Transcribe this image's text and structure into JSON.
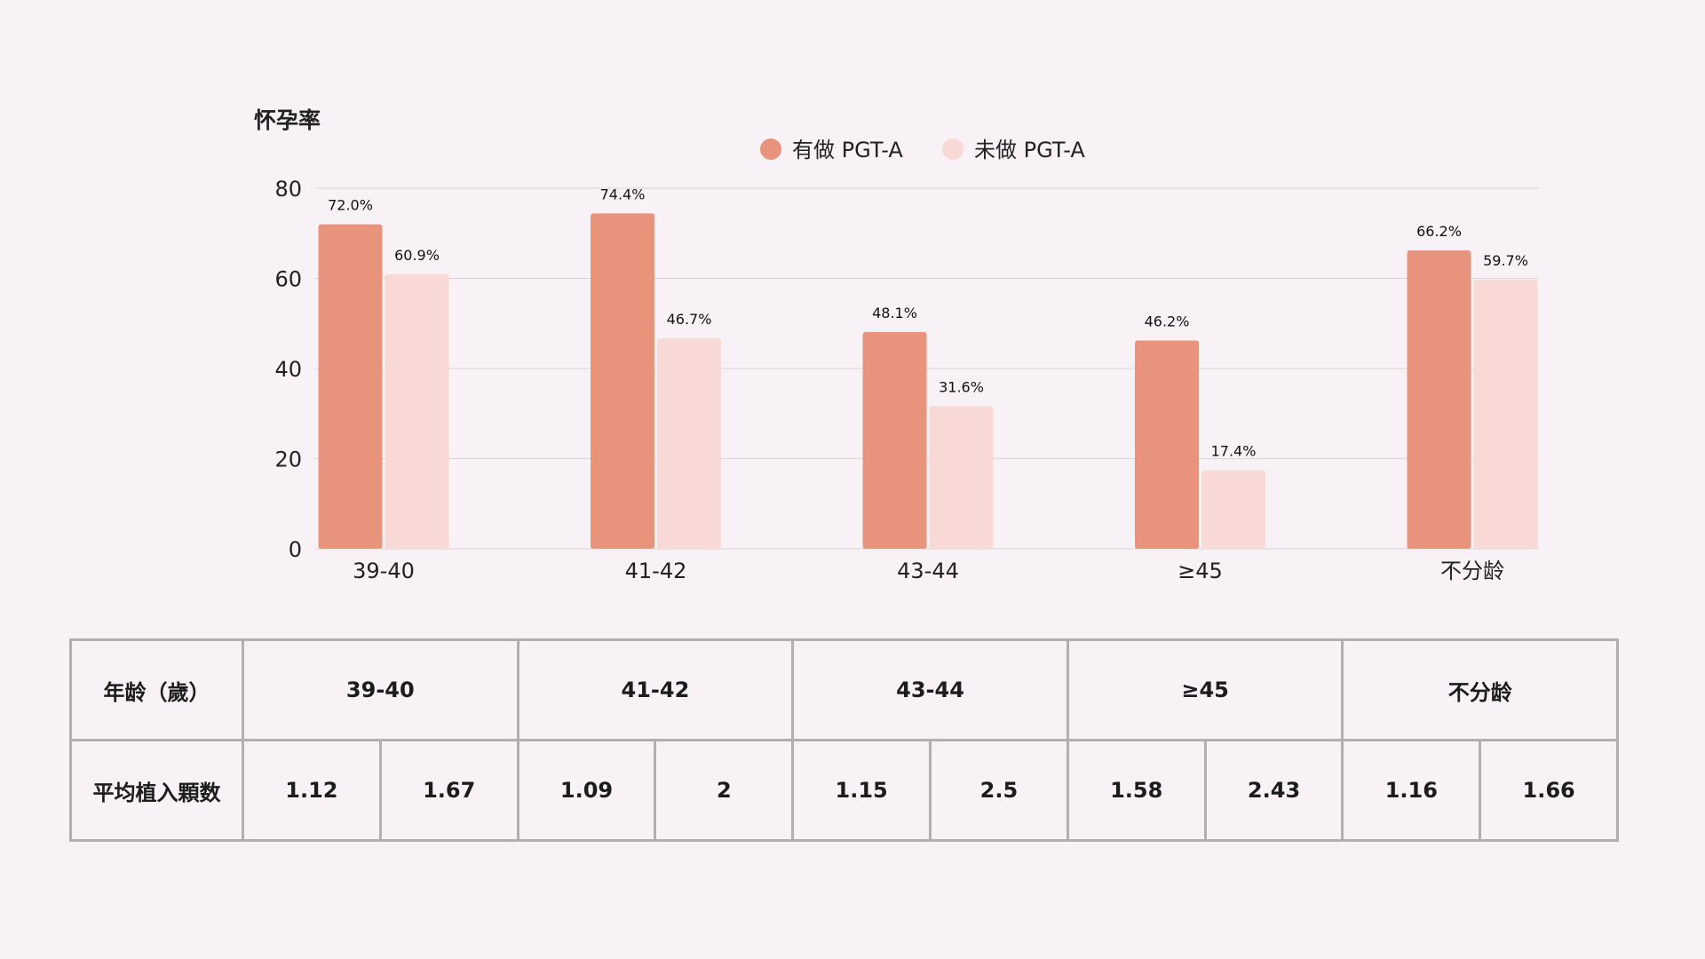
{
  "chart_data": {
    "type": "bar",
    "title": "",
    "ylabel": "怀孕率",
    "xlabel": "",
    "ylim": [
      0,
      80
    ],
    "yticks": [
      0,
      20,
      40,
      60,
      80
    ],
    "grid": true,
    "legend_position": "top-center",
    "categories": [
      "39-40",
      "41-42",
      "43-44",
      "≥45",
      "不分龄"
    ],
    "series": [
      {
        "name": "有做 PGT-A",
        "color": "#e8937b",
        "values": [
          72.0,
          74.4,
          48.1,
          46.2,
          66.2
        ],
        "labels": [
          "72.0%",
          "74.4%",
          "48.1%",
          "46.2%",
          "66.2%"
        ]
      },
      {
        "name": "未做 PGT-A",
        "color": "#f9d9d6",
        "values": [
          60.9,
          46.7,
          31.6,
          17.4,
          59.7
        ],
        "labels": [
          "60.9%",
          "46.7%",
          "31.6%",
          "17.4%",
          "59.7%"
        ]
      }
    ]
  },
  "table": {
    "header_label": "年龄（歲）",
    "groups": [
      "39-40",
      "41-42",
      "43-44",
      "≥45",
      "不分龄"
    ],
    "row_label": "平均植入顆数",
    "values": [
      "1.12",
      "1.67",
      "1.09",
      "2",
      "1.15",
      "2.5",
      "1.58",
      "2.43",
      "1.16",
      "1.66"
    ]
  }
}
